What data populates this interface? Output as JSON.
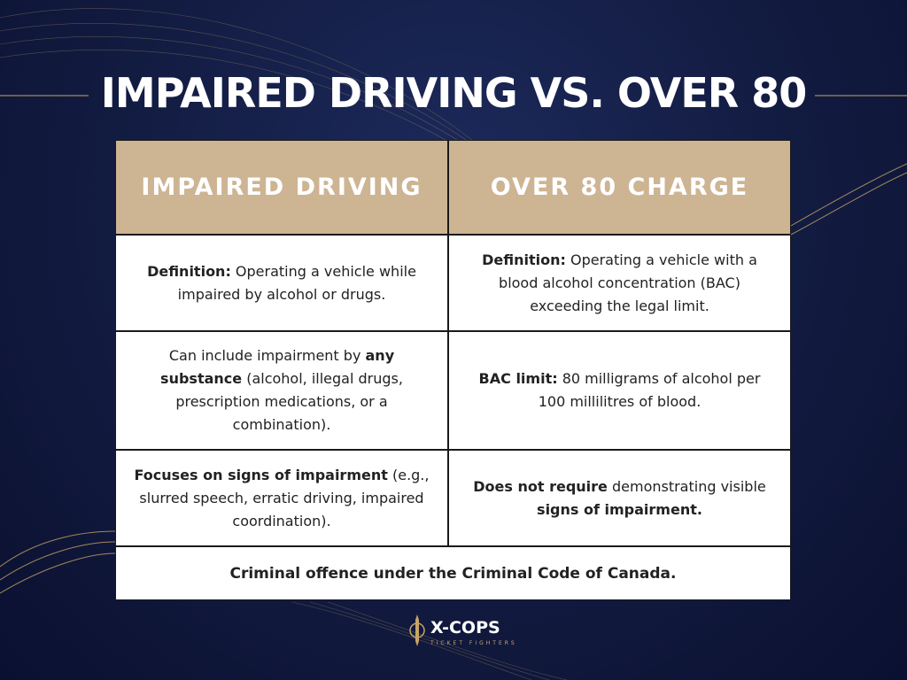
{
  "title": "IMPAIRED DRIVING VS. OVER 80",
  "table": {
    "header": [
      "IMPAIRED DRIVING",
      "OVER 80 CHARGE"
    ],
    "rows": [
      [
        [
          {
            "text": "Definition:",
            "bold": true
          },
          {
            "text": " Operating a vehicle while impaired by alcohol or drugs.",
            "bold": false
          }
        ],
        [
          {
            "text": "Definition:",
            "bold": true
          },
          {
            "text": " Operating a vehicle with a blood alcohol concentration (BAC) exceeding the legal limit.",
            "bold": false
          }
        ]
      ],
      [
        [
          {
            "text": "Can include impairment by ",
            "bold": false
          },
          {
            "text": "any substance",
            "bold": true
          },
          {
            "text": " (alcohol, illegal drugs, prescription medications, or a combination).",
            "bold": false
          }
        ],
        [
          {
            "text": "BAC limit:",
            "bold": true
          },
          {
            "text": " 80 milligrams of alcohol per 100 millilitres of blood.",
            "bold": false
          }
        ]
      ],
      [
        [
          {
            "text": "Focuses on signs of impairment",
            "bold": true
          },
          {
            "text": " (e.g., slurred speech, erratic driving, impaired coordination).",
            "bold": false
          }
        ],
        [
          {
            "text": "Does not require",
            "bold": true
          },
          {
            "text": " demonstrating visible ",
            "bold": false
          },
          {
            "text": "signs of impairment.",
            "bold": true
          }
        ]
      ]
    ],
    "footer": "Criminal offence under the Criminal Code of Canada."
  },
  "logo": {
    "name": "X-COPS",
    "tagline": "TICKET FIGHTERS"
  }
}
